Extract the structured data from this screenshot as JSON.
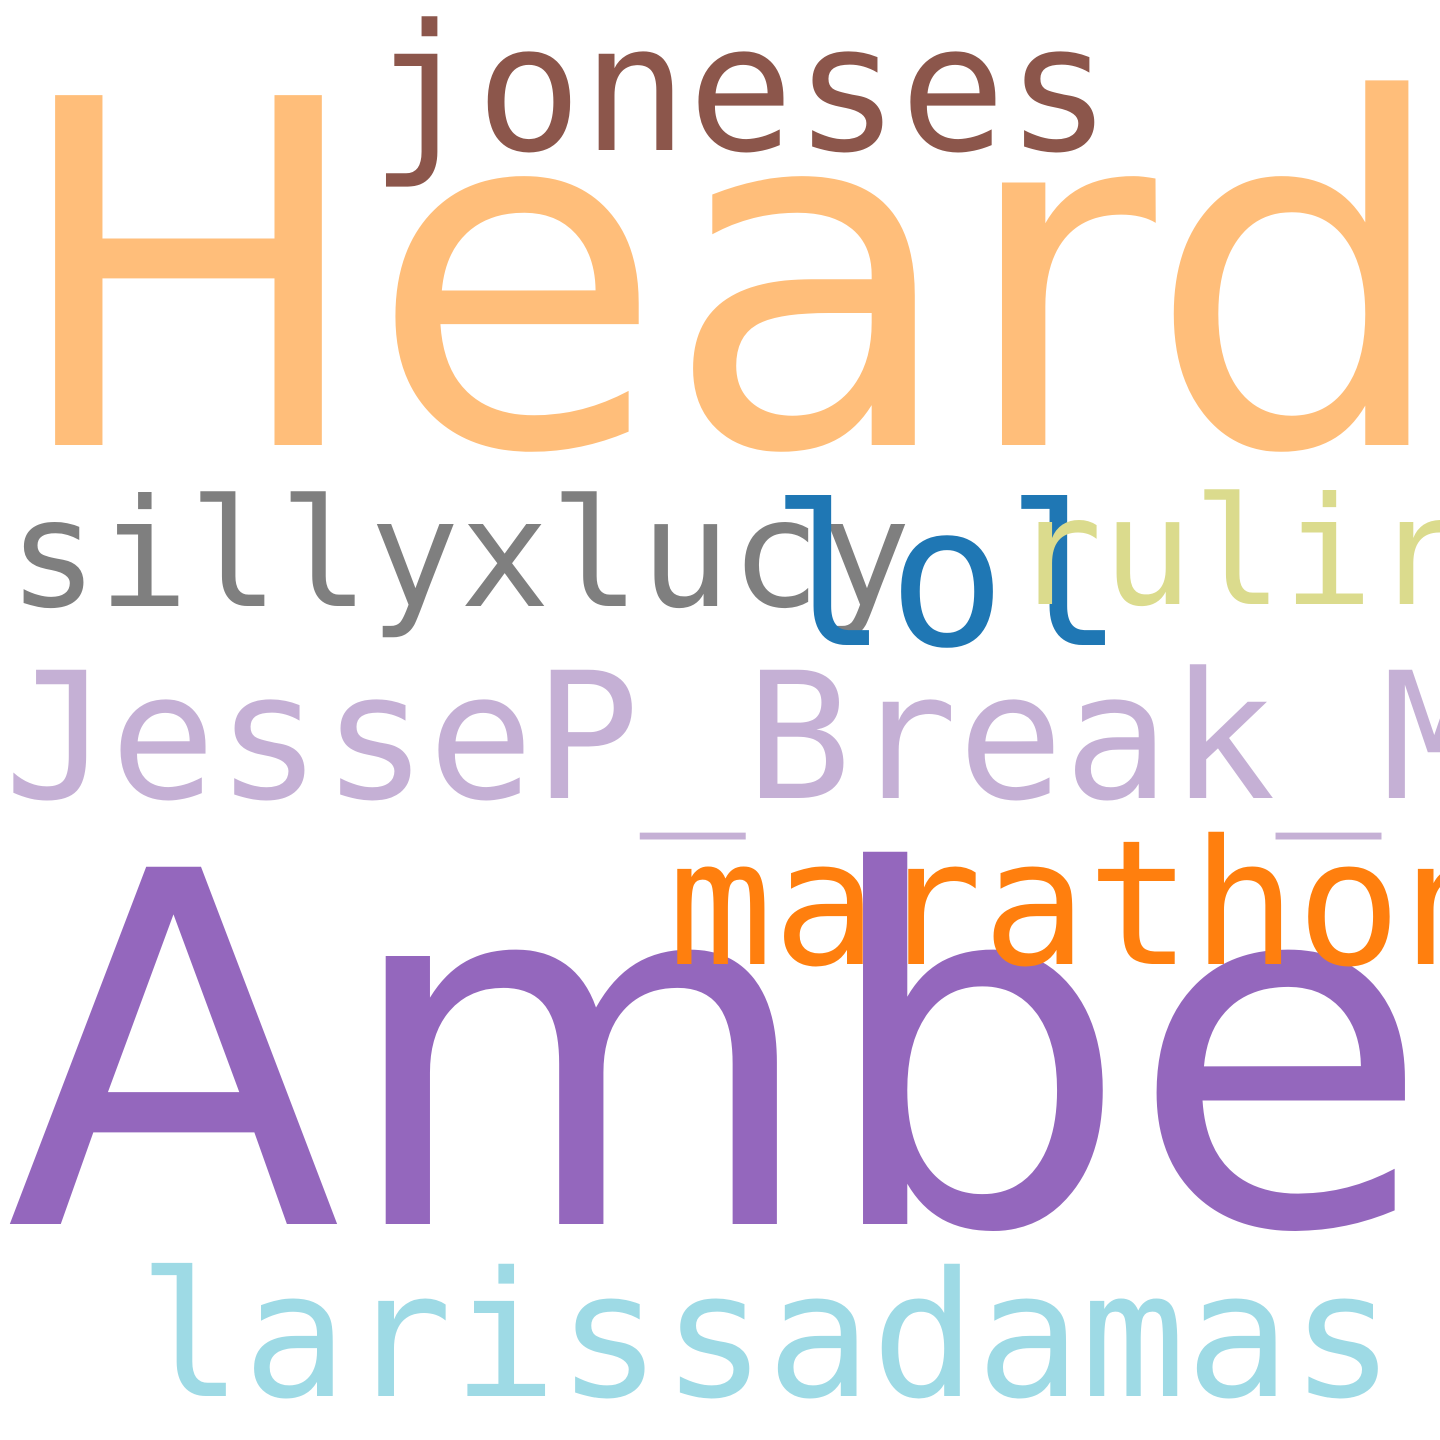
{
  "words": [
    {
      "text": "Heard",
      "color": "#ffbe7a"
    },
    {
      "text": "Amber",
      "color": "#9467bd"
    },
    {
      "text": "joneses",
      "color": "#8c564b"
    },
    {
      "text": "sillyxlucy",
      "color": "#7f7f7f"
    },
    {
      "text": "lol",
      "color": "#1f77b4"
    },
    {
      "text": "rulira",
      "color": "#dbdb8d"
    },
    {
      "text": "JesseP_Break_Me",
      "color": "#c5b0d5"
    },
    {
      "text": "marathon",
      "color": "#ff7f0e"
    },
    {
      "text": "larissadamas",
      "color": "#9edae5"
    }
  ],
  "background": "#ffffff"
}
